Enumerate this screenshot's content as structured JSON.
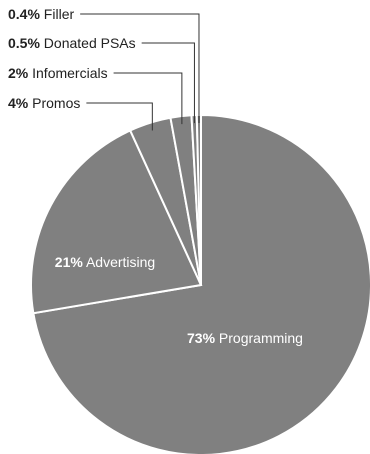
{
  "chart_data": {
    "type": "pie",
    "slices": [
      {
        "label": "Programming",
        "pct_label": "73%",
        "value": 73.0,
        "color": "#808080",
        "label_style": "inside"
      },
      {
        "label": "Advertising",
        "pct_label": "21%",
        "value": 21.0,
        "color": "#808080",
        "label_style": "inside"
      },
      {
        "label": "Promos",
        "pct_label": "4%",
        "value": 4.0,
        "color": "#808080",
        "label_style": "leader"
      },
      {
        "label": "Infomercials",
        "pct_label": "2%",
        "value": 2.0,
        "color": "#808080",
        "label_style": "leader"
      },
      {
        "label": "Donated PSAs",
        "pct_label": "0.5%",
        "value": 0.5,
        "color": "#808080",
        "label_style": "leader"
      },
      {
        "label": "Filler",
        "pct_label": "0.4%",
        "value": 0.4,
        "color": "#808080",
        "label_style": "leader"
      }
    ],
    "title": "",
    "legend": "none",
    "colors": {
      "slice_fill": "#808080",
      "slice_border": "#ffffff",
      "leader_line": "#333333",
      "outside_text": "#222222",
      "inside_text": "#ffffff"
    }
  }
}
